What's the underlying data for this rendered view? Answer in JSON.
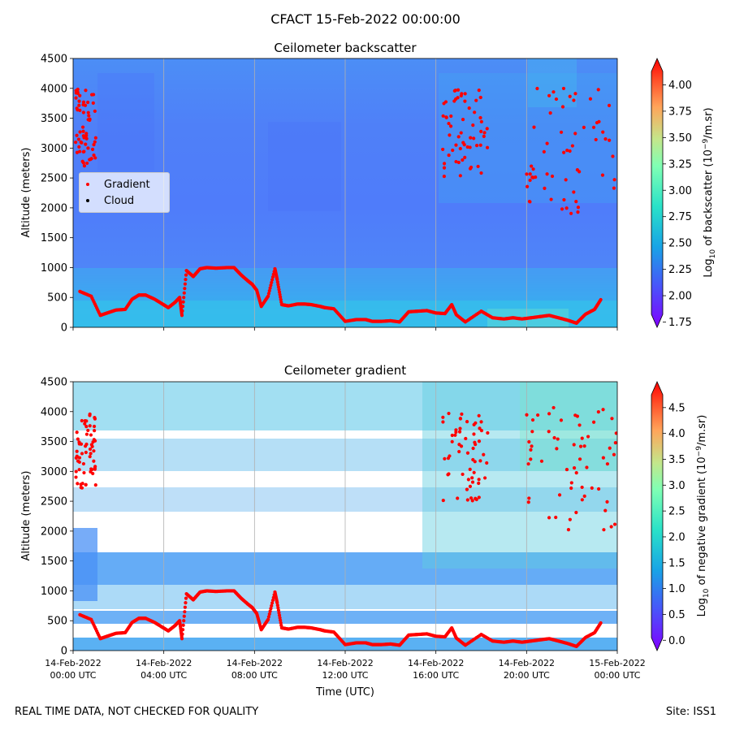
{
  "figure": {
    "suptitle": "CFACT 15-Feb-2022 00:00:00",
    "footer_left": "REAL TIME DATA, NOT CHECKED FOR QUALITY",
    "footer_right": "Site: ISS1",
    "colors": {
      "gradient_marker": "#ff0000",
      "cloud_marker": "#000000",
      "grid": "#b0b0b0",
      "masked": "#ffffff"
    }
  },
  "legend": {
    "items": [
      {
        "label": "Gradient",
        "color": "#ff0000"
      },
      {
        "label": "Cloud",
        "color": "#000000"
      }
    ]
  },
  "chart_data": [
    {
      "type": "heatmap",
      "title": "Ceilometer backscatter",
      "xlabel": "",
      "ylabel": "Altitude (meters)",
      "ylim": [
        0,
        4500
      ],
      "y_ticks": [
        0,
        500,
        1000,
        1500,
        2000,
        2500,
        3000,
        3500,
        4000,
        4500
      ],
      "x_range_hours": [
        0,
        24
      ],
      "x_ticks_hours": [
        0,
        4,
        8,
        12,
        16,
        20,
        24
      ],
      "colorbar": {
        "label_prefix": "Log",
        "label_sub": "10",
        "label_mid": " of backscatter (10",
        "label_sup": "−9",
        "label_suffix": "/m.sr)",
        "range": [
          1.7,
          4.25
        ],
        "ticks": [
          "1.75",
          "2.00",
          "2.25",
          "2.50",
          "2.75",
          "3.00",
          "3.25",
          "3.50",
          "3.75",
          "4.00"
        ],
        "tick_values": [
          1.75,
          2.0,
          2.25,
          2.5,
          2.75,
          3.0,
          3.25,
          3.5,
          3.75,
          4.0
        ],
        "colormap": "rainbow",
        "extend": "both"
      }
    },
    {
      "type": "heatmap",
      "title": "Ceilometer gradient",
      "xlabel": "Time (UTC)",
      "ylabel": "Altitude (meters)",
      "ylim": [
        0,
        4500
      ],
      "y_ticks": [
        0,
        500,
        1000,
        1500,
        2000,
        2500,
        3000,
        3500,
        4000,
        4500
      ],
      "x_range_hours": [
        0,
        24
      ],
      "x_ticks_hours": [
        0,
        4,
        8,
        12,
        16,
        20,
        24
      ],
      "x_tick_labels": [
        [
          "14-Feb-2022",
          "00:00 UTC"
        ],
        [
          "14-Feb-2022",
          "04:00 UTC"
        ],
        [
          "14-Feb-2022",
          "08:00 UTC"
        ],
        [
          "14-Feb-2022",
          "12:00 UTC"
        ],
        [
          "14-Feb-2022",
          "16:00 UTC"
        ],
        [
          "14-Feb-2022",
          "20:00 UTC"
        ],
        [
          "15-Feb-2022",
          "00:00 UTC"
        ]
      ],
      "colorbar": {
        "label_prefix": "Log",
        "label_sub": "10",
        "label_mid": " of negative gradient (10",
        "label_sup": "−9",
        "label_suffix": "/m.sr)",
        "range": [
          -0.2,
          5.0
        ],
        "ticks": [
          "0.0",
          "0.5",
          "1.0",
          "1.5",
          "2.0",
          "2.5",
          "3.0",
          "3.5",
          "4.0",
          "4.5"
        ],
        "tick_values": [
          0.0,
          0.5,
          1.0,
          1.5,
          2.0,
          2.5,
          3.0,
          3.5,
          4.0,
          4.5
        ],
        "colormap": "rainbow",
        "extend": "both"
      }
    }
  ],
  "gradient_markers": {
    "series_name": "Gradient",
    "boundary_layer": [
      [
        0.3,
        600
      ],
      [
        0.8,
        520
      ],
      [
        1.2,
        200
      ],
      [
        1.5,
        240
      ],
      [
        1.9,
        290
      ],
      [
        2.3,
        300
      ],
      [
        2.6,
        470
      ],
      [
        2.9,
        540
      ],
      [
        3.2,
        540
      ],
      [
        3.6,
        470
      ],
      [
        3.9,
        400
      ],
      [
        4.2,
        330
      ],
      [
        4.5,
        420
      ],
      [
        4.7,
        500
      ],
      [
        4.8,
        200
      ],
      [
        5.0,
        950
      ],
      [
        5.3,
        850
      ],
      [
        5.6,
        980
      ],
      [
        5.9,
        1000
      ],
      [
        6.3,
        990
      ],
      [
        6.8,
        1000
      ],
      [
        7.1,
        1000
      ],
      [
        7.4,
        880
      ],
      [
        7.7,
        780
      ],
      [
        7.9,
        720
      ],
      [
        8.1,
        620
      ],
      [
        8.3,
        350
      ],
      [
        8.6,
        520
      ],
      [
        8.9,
        980
      ],
      [
        9.0,
        800
      ],
      [
        9.2,
        380
      ],
      [
        9.5,
        360
      ],
      [
        9.9,
        390
      ],
      [
        10.2,
        390
      ],
      [
        10.5,
        380
      ],
      [
        10.9,
        350
      ],
      [
        11.1,
        330
      ],
      [
        11.5,
        310
      ],
      [
        12.0,
        100
      ],
      [
        12.5,
        130
      ],
      [
        12.9,
        130
      ],
      [
        13.2,
        100
      ],
      [
        13.6,
        100
      ],
      [
        14.0,
        110
      ],
      [
        14.4,
        90
      ],
      [
        14.8,
        260
      ],
      [
        15.2,
        270
      ],
      [
        15.6,
        280
      ],
      [
        16.0,
        240
      ],
      [
        16.4,
        230
      ],
      [
        16.7,
        380
      ],
      [
        16.9,
        210
      ],
      [
        17.3,
        90
      ],
      [
        18.0,
        270
      ],
      [
        18.5,
        160
      ],
      [
        19.0,
        140
      ],
      [
        19.4,
        160
      ],
      [
        19.8,
        140
      ],
      [
        20.2,
        160
      ],
      [
        20.6,
        180
      ],
      [
        21.0,
        200
      ],
      [
        21.4,
        160
      ],
      [
        21.8,
        120
      ],
      [
        22.2,
        70
      ],
      [
        22.6,
        220
      ],
      [
        23.0,
        300
      ],
      [
        23.3,
        480
      ]
    ],
    "upper_clusters": [
      {
        "x_hours": [
          0.1,
          1.0
        ],
        "y_m": [
          2700,
          4000
        ]
      },
      {
        "x_hours": [
          16.3,
          18.3
        ],
        "y_m": [
          2500,
          4000
        ]
      },
      {
        "x_hours": [
          20.0,
          24.0
        ],
        "y_m": [
          1900,
          4100
        ]
      }
    ]
  }
}
